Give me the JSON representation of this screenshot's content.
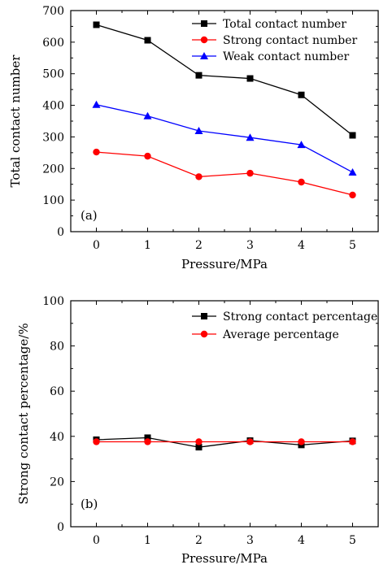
{
  "chart_data": [
    {
      "type": "line",
      "panel_label": "(a)",
      "xlabel": "Pressure/MPa",
      "ylabel": "Total contact number",
      "x": [
        0,
        1,
        2,
        3,
        4,
        5
      ],
      "xticks": [
        "0",
        "1",
        "2",
        "3",
        "4",
        "5"
      ],
      "xlim": [
        -0.5,
        5.5
      ],
      "ylim": [
        0,
        700
      ],
      "yticks": [
        "0",
        "100",
        "200",
        "300",
        "400",
        "500",
        "600",
        "700"
      ],
      "legend_position": "top-right",
      "series": [
        {
          "name": "Total contact number",
          "color": "#000000",
          "marker": "square",
          "values": [
            655,
            606,
            495,
            485,
            433,
            305
          ]
        },
        {
          "name": "Strong contact number",
          "color": "#ff0000",
          "marker": "circle",
          "values": [
            252,
            239,
            174,
            185,
            157,
            116
          ]
        },
        {
          "name": "Weak contact number",
          "color": "#0000ff",
          "marker": "triangle",
          "values": [
            402,
            366,
            319,
            298,
            275,
            188
          ]
        }
      ]
    },
    {
      "type": "line",
      "panel_label": "(b)",
      "xlabel": "Pressure/MPa",
      "ylabel": "Strong contact percentage/%",
      "x": [
        0,
        1,
        2,
        3,
        4,
        5
      ],
      "xticks": [
        "0",
        "1",
        "2",
        "3",
        "4",
        "5"
      ],
      "xlim": [
        -0.5,
        5.5
      ],
      "ylim": [
        0,
        100
      ],
      "yticks": [
        "0",
        "20",
        "40",
        "60",
        "80",
        "100"
      ],
      "legend_position": "top-right",
      "series": [
        {
          "name": "Strong contact percentage",
          "color": "#000000",
          "marker": "square",
          "values": [
            38.5,
            39.4,
            35.2,
            38.1,
            36.2,
            38.0
          ]
        },
        {
          "name": "Average percentage",
          "color": "#ff0000",
          "marker": "circle",
          "values": [
            37.6,
            37.6,
            37.6,
            37.6,
            37.6,
            37.6
          ]
        }
      ]
    }
  ]
}
